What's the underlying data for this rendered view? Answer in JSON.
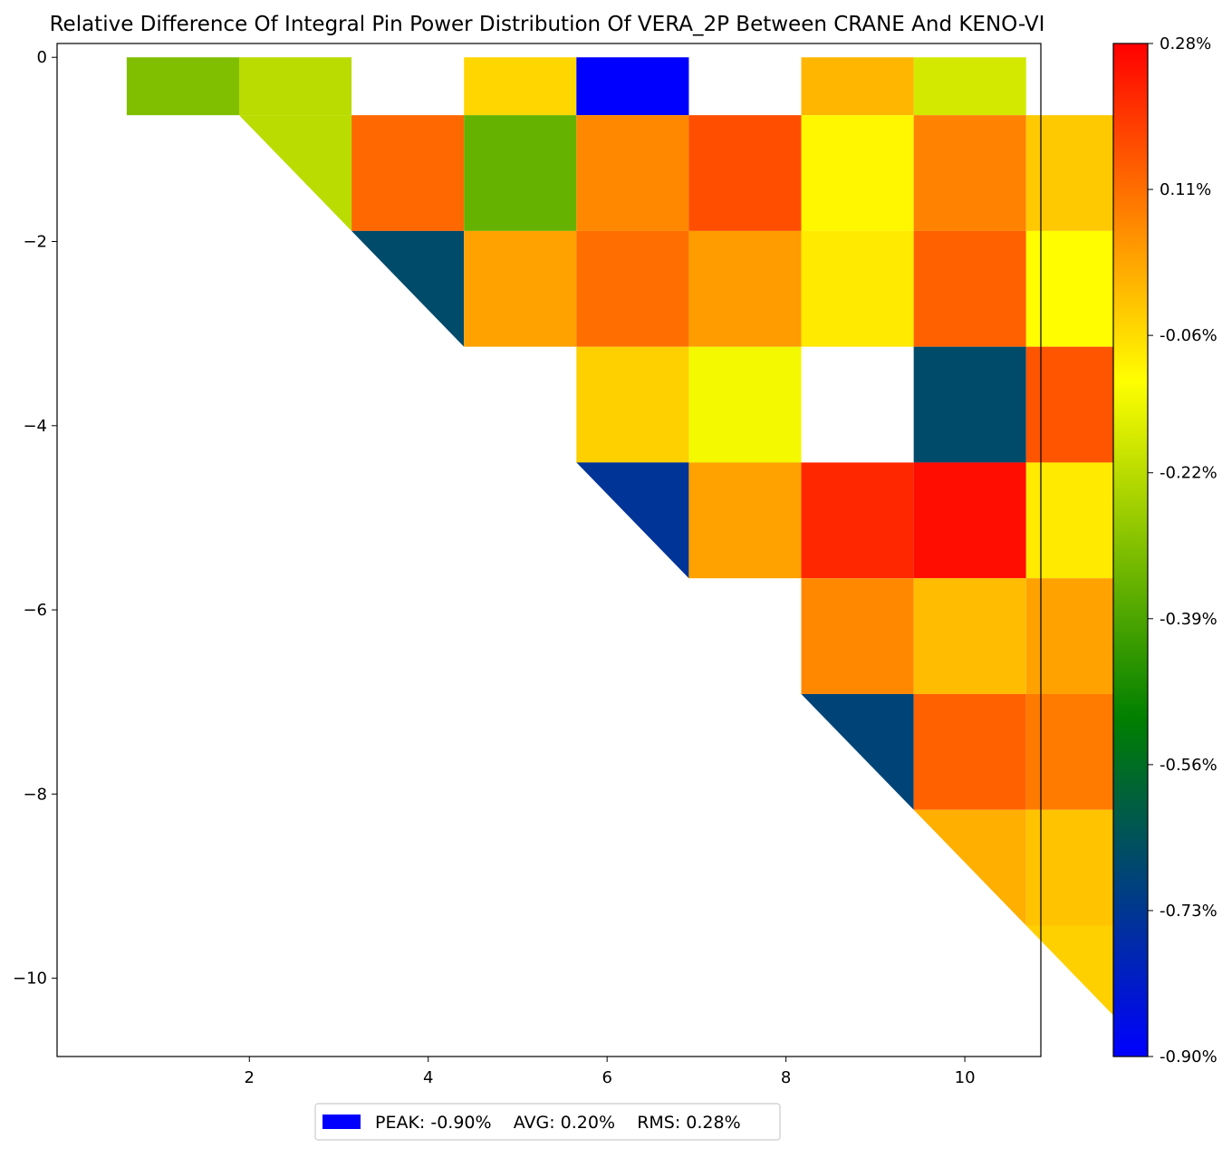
{
  "chart_data": {
    "type": "heatmap",
    "title": "Relative Difference Of Integral Pin Power Distribution Of VERA_2P Between CRANE And KENO-VI",
    "xlabel": "",
    "ylabel": "",
    "xlim": [
      -0.15,
      10.85
    ],
    "ylim": [
      -10.85,
      0.15
    ],
    "x_ticks": [
      {
        "value": 2,
        "label": "2"
      },
      {
        "value": 4,
        "label": "4"
      },
      {
        "value": 6,
        "label": "6"
      },
      {
        "value": 8,
        "label": "8"
      },
      {
        "value": 10,
        "label": "10"
      }
    ],
    "y_ticks": [
      {
        "value": 0,
        "label": "0"
      },
      {
        "value": -2,
        "label": "−2"
      },
      {
        "value": -4,
        "label": "−4"
      },
      {
        "value": -6,
        "label": "−6"
      },
      {
        "value": -8,
        "label": "−8"
      },
      {
        "value": -10,
        "label": "−10"
      }
    ],
    "grid": false,
    "cell_size": 1.2571,
    "x_origin": 0.6286,
    "diagonal_mode": "lower-left half triangles on the diagonal",
    "cells": [
      {
        "row": 0,
        "col": 0,
        "value": -0.31,
        "shape": "top-half"
      },
      {
        "row": 0,
        "col": 1,
        "value": -0.22
      },
      {
        "row": 0,
        "col": 3,
        "value": -0.05
      },
      {
        "row": 0,
        "col": 4,
        "value": -0.9
      },
      {
        "row": 0,
        "col": 6,
        "value": 0.0
      },
      {
        "row": 0,
        "col": 7,
        "value": -0.18
      },
      {
        "row": 1,
        "col": 1,
        "value": -0.22,
        "shape": "triangle"
      },
      {
        "row": 1,
        "col": 2,
        "value": 0.12
      },
      {
        "row": 1,
        "col": 3,
        "value": -0.35
      },
      {
        "row": 1,
        "col": 4,
        "value": 0.07
      },
      {
        "row": 1,
        "col": 5,
        "value": 0.16
      },
      {
        "row": 1,
        "col": 6,
        "value": -0.1
      },
      {
        "row": 1,
        "col": 7,
        "value": 0.08
      },
      {
        "row": 1,
        "col": 8,
        "value": -0.03
      },
      {
        "row": 2,
        "col": 2,
        "value": -0.67,
        "shape": "triangle"
      },
      {
        "row": 2,
        "col": 3,
        "value": 0.03
      },
      {
        "row": 2,
        "col": 4,
        "value": 0.11
      },
      {
        "row": 2,
        "col": 5,
        "value": 0.04
      },
      {
        "row": 2,
        "col": 6,
        "value": -0.08
      },
      {
        "row": 2,
        "col": 7,
        "value": 0.13
      },
      {
        "row": 2,
        "col": 8,
        "value": -0.11
      },
      {
        "row": 3,
        "col": 4,
        "value": -0.04
      },
      {
        "row": 3,
        "col": 5,
        "value": -0.13
      },
      {
        "row": 3,
        "col": 7,
        "value": -0.67
      },
      {
        "row": 3,
        "col": 8,
        "value": 0.15
      },
      {
        "row": 4,
        "col": 4,
        "value": -0.74,
        "shape": "triangle"
      },
      {
        "row": 4,
        "col": 5,
        "value": 0.03
      },
      {
        "row": 4,
        "col": 6,
        "value": 0.22
      },
      {
        "row": 4,
        "col": 7,
        "value": 0.26
      },
      {
        "row": 4,
        "col": 8,
        "value": -0.08
      },
      {
        "row": 5,
        "col": 6,
        "value": 0.07
      },
      {
        "row": 5,
        "col": 7,
        "value": -0.01
      },
      {
        "row": 5,
        "col": 8,
        "value": 0.03
      },
      {
        "row": 6,
        "col": 6,
        "value": -0.69,
        "shape": "triangle"
      },
      {
        "row": 6,
        "col": 7,
        "value": 0.13
      },
      {
        "row": 6,
        "col": 8,
        "value": 0.09
      },
      {
        "row": 7,
        "col": 7,
        "value": 0.01,
        "shape": "triangle"
      },
      {
        "row": 7,
        "col": 8,
        "value": -0.02
      },
      {
        "row": 8,
        "col": 8,
        "value": -0.04,
        "shape": "triangle"
      }
    ],
    "colorbar": {
      "min": -0.9,
      "max": 0.28,
      "colors": [
        "#0000ff",
        "#007f00",
        "#ffff00",
        "#ff0000"
      ],
      "color_positions": [
        0.0,
        0.333,
        0.667,
        1.0
      ],
      "ticks": [
        {
          "value": 0.28,
          "label": "0.28%"
        },
        {
          "value": 0.11,
          "label": "0.11%"
        },
        {
          "value": -0.06,
          "label": "-0.06%"
        },
        {
          "value": -0.22,
          "label": "-0.22%"
        },
        {
          "value": -0.39,
          "label": "-0.39%"
        },
        {
          "value": -0.56,
          "label": "-0.56%"
        },
        {
          "value": -0.73,
          "label": "-0.73%"
        },
        {
          "value": -0.9,
          "label": "-0.90%"
        }
      ]
    },
    "legend": {
      "position": "bottom-center",
      "swatch_color": "#0000ff",
      "text": "PEAK: -0.90%    AVG: 0.20%    RMS: 0.28%"
    }
  }
}
